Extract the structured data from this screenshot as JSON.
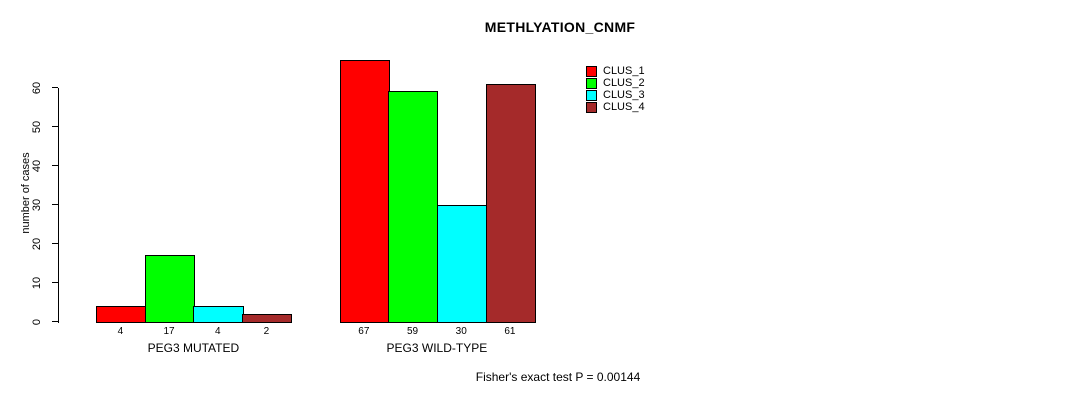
{
  "chart_data": {
    "type": "bar",
    "title": "METHLYATION_CNMF",
    "ylabel": "number of cases",
    "xlabel": "",
    "ylim": [
      0,
      60
    ],
    "yticks": [
      0,
      10,
      20,
      30,
      40,
      50,
      60
    ],
    "categories": [
      "PEG3 MUTATED",
      "PEG3 WILD-TYPE"
    ],
    "series": [
      {
        "name": "CLUS_1",
        "color": "#ff0000",
        "values": [
          4,
          67
        ]
      },
      {
        "name": "CLUS_2",
        "color": "#00ff00",
        "values": [
          17,
          59
        ]
      },
      {
        "name": "CLUS_3",
        "color": "#00ffff",
        "values": [
          4,
          30
        ]
      },
      {
        "name": "CLUS_4",
        "color": "#a52a2a",
        "values": [
          2,
          61
        ]
      }
    ],
    "bar_value_labels": true,
    "legend_position": "top-right",
    "grid": false,
    "annotation": "Fisher's exact test P = 0.00144"
  }
}
